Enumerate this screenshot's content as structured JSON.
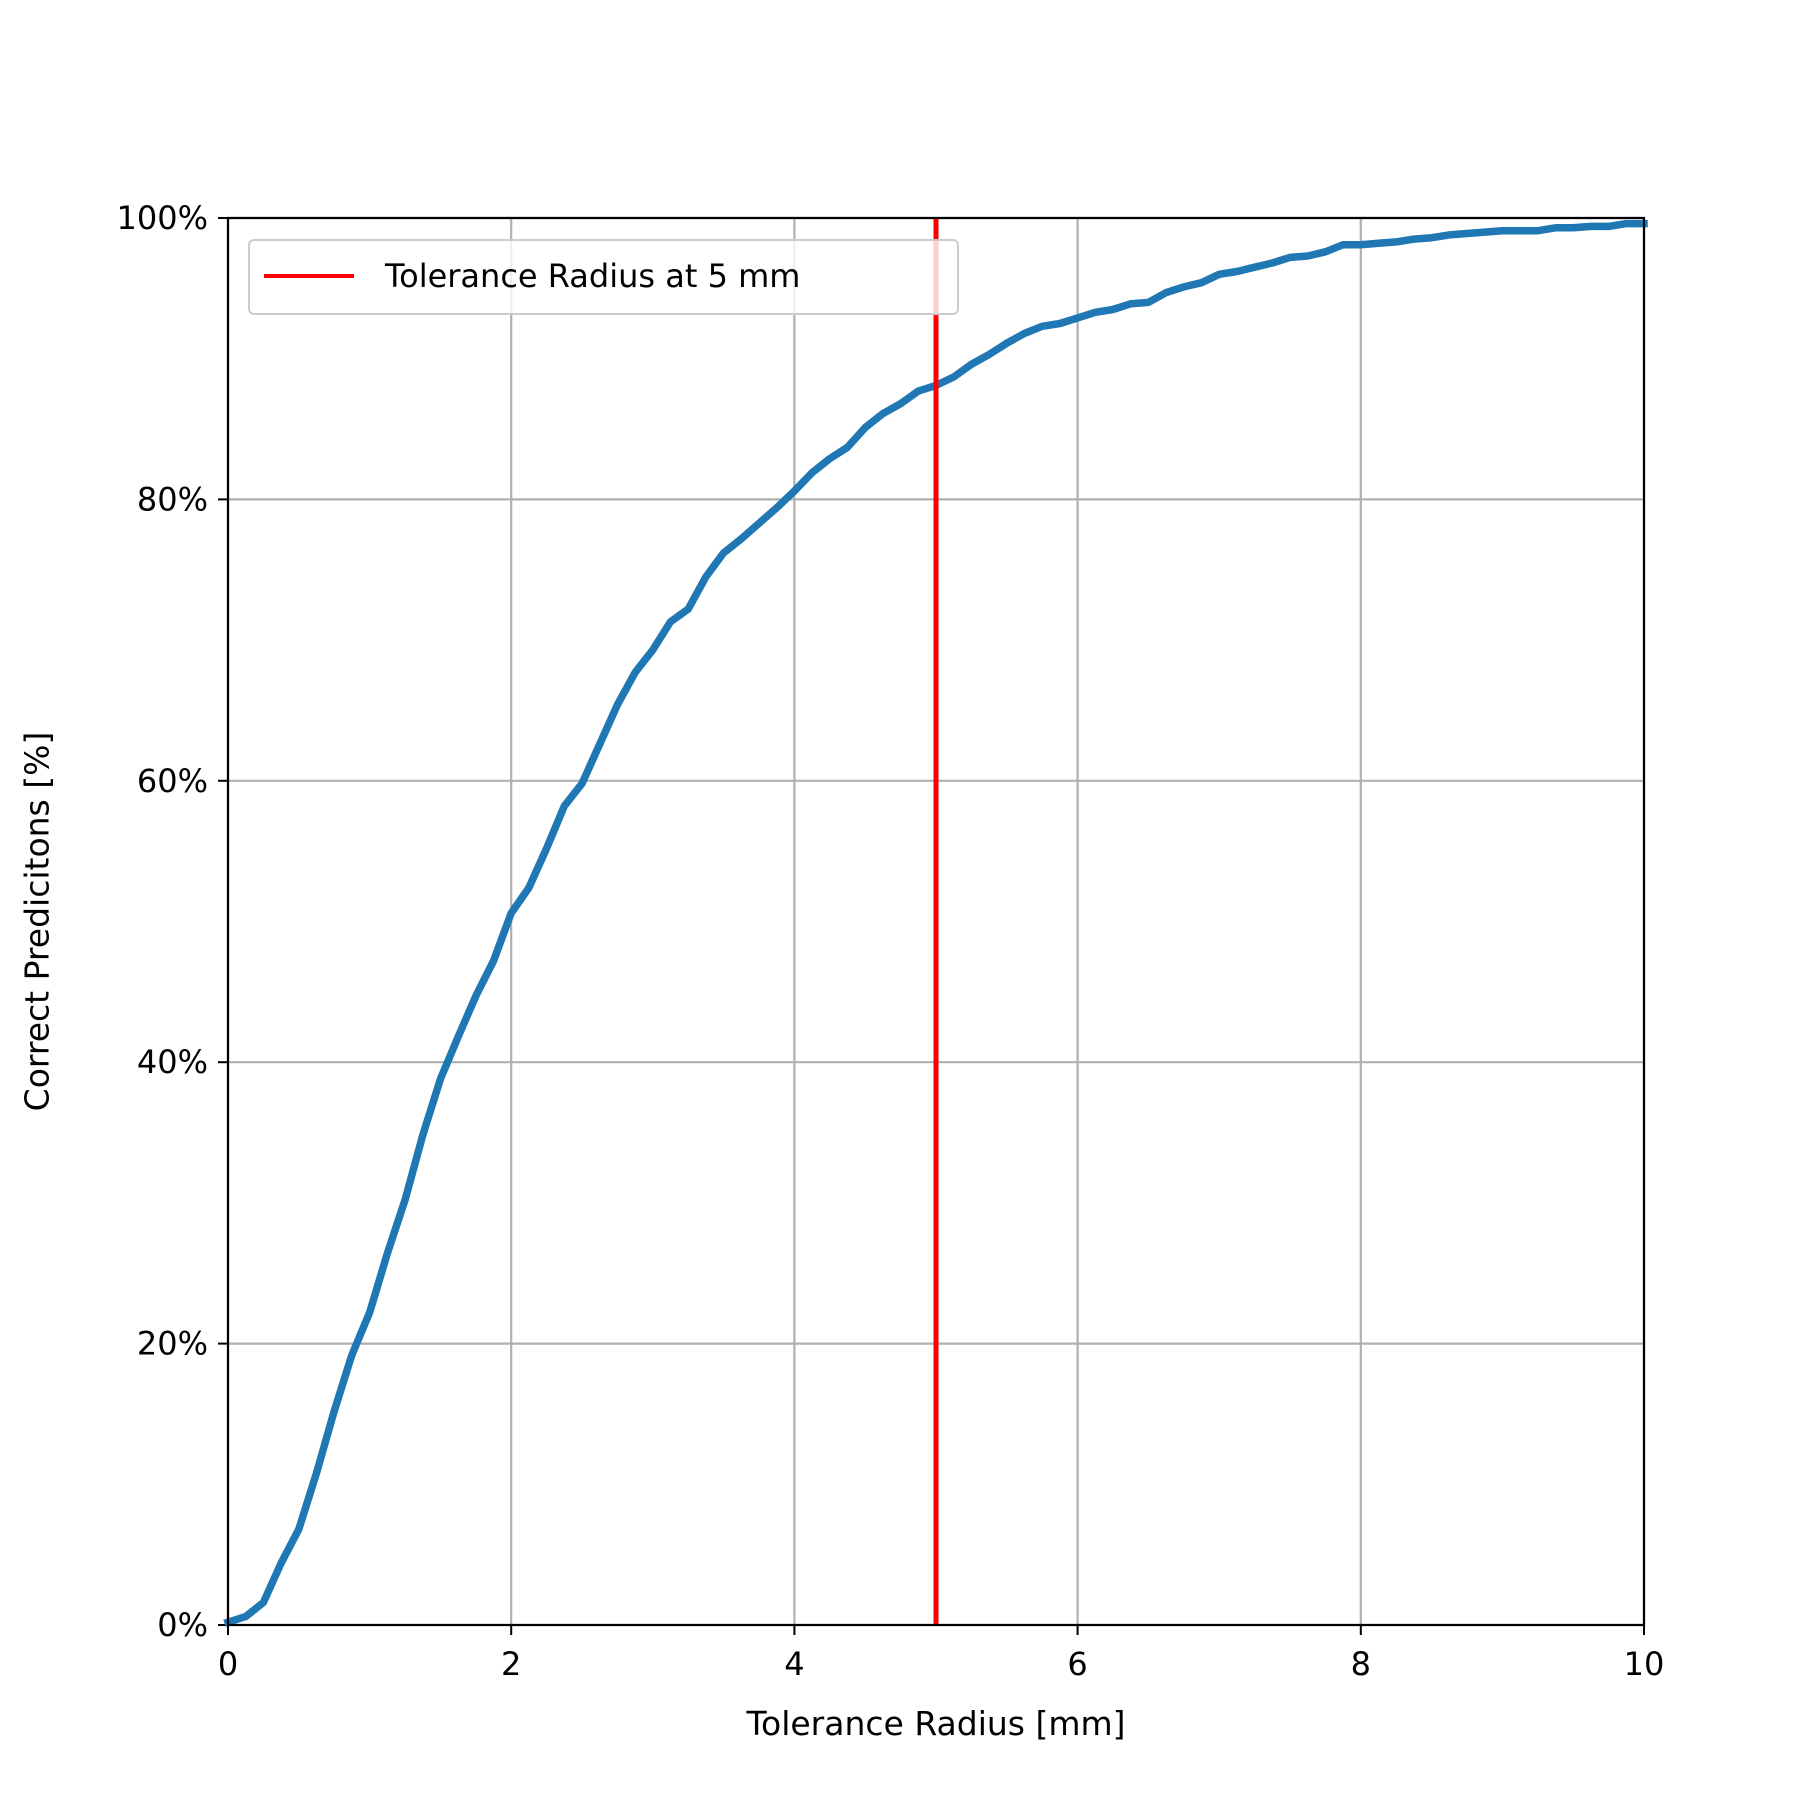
{
  "chart_data": {
    "type": "line",
    "title": "",
    "xlabel": "Tolerance Radius [mm]",
    "ylabel": "Correct Predicitons [%]",
    "xlim": [
      0,
      10
    ],
    "ylim": [
      0,
      100
    ],
    "x_ticks": [
      0,
      2,
      4,
      6,
      8,
      10
    ],
    "x_tick_labels": [
      "0",
      "2",
      "4",
      "6",
      "8",
      "10"
    ],
    "y_ticks": [
      0,
      20,
      40,
      60,
      80,
      100
    ],
    "y_tick_labels": [
      "0%",
      "20%",
      "40%",
      "60%",
      "80%",
      "100%"
    ],
    "grid": true,
    "legend_position": "upper-left",
    "series": [
      {
        "color": "#1f77b4",
        "x": [
          0,
          0.125,
          0.25,
          0.375,
          0.5,
          0.625,
          0.75,
          0.875,
          1.0,
          1.125,
          1.25,
          1.375,
          1.5,
          1.625,
          1.75,
          1.875,
          2.0,
          2.125,
          2.25,
          2.375,
          2.5,
          2.625,
          2.75,
          2.875,
          3.0,
          3.125,
          3.25,
          3.375,
          3.5,
          3.625,
          3.75,
          3.875,
          4.0,
          4.125,
          4.25,
          4.375,
          4.5,
          4.625,
          4.75,
          4.875,
          5.0,
          5.125,
          5.25,
          5.375,
          5.5,
          5.625,
          5.75,
          5.875,
          6.0,
          6.125,
          6.25,
          6.375,
          6.5,
          6.625,
          6.75,
          6.875,
          7.0,
          7.125,
          7.25,
          7.375,
          7.5,
          7.625,
          7.75,
          7.875,
          8.0,
          8.125,
          8.25,
          8.375,
          8.5,
          8.625,
          8.75,
          8.875,
          9.0,
          9.125,
          9.25,
          9.375,
          9.5,
          9.625,
          9.75,
          9.875,
          10.0
        ],
        "y": [
          0.2,
          0.6,
          1.6,
          4.4,
          6.8,
          10.8,
          15.2,
          19.2,
          22.2,
          26.4,
          30.2,
          34.8,
          38.8,
          41.8,
          44.7,
          47.2,
          50.6,
          52.4,
          55.2,
          58.2,
          59.8,
          62.6,
          65.4,
          67.7,
          69.3,
          71.3,
          72.2,
          74.5,
          76.2,
          77.2,
          78.3,
          79.4,
          80.6,
          81.9,
          82.9,
          83.7,
          85.1,
          86.1,
          86.8,
          87.7,
          88.1,
          88.7,
          89.6,
          90.3,
          91.1,
          91.8,
          92.3,
          92.5,
          92.9,
          93.3,
          93.5,
          93.9,
          94.0,
          94.7,
          95.1,
          95.4,
          96.0,
          96.2,
          96.5,
          96.8,
          97.2,
          97.3,
          97.6,
          98.1,
          98.1,
          98.2,
          98.3,
          98.5,
          98.6,
          98.8,
          98.9,
          99.0,
          99.1,
          99.1,
          99.1,
          99.3,
          99.3,
          99.4,
          99.4,
          99.6,
          99.6
        ]
      }
    ],
    "vline": {
      "x": 5,
      "color": "#ff0000",
      "label": "Tolerance Radius at 5 mm"
    }
  }
}
